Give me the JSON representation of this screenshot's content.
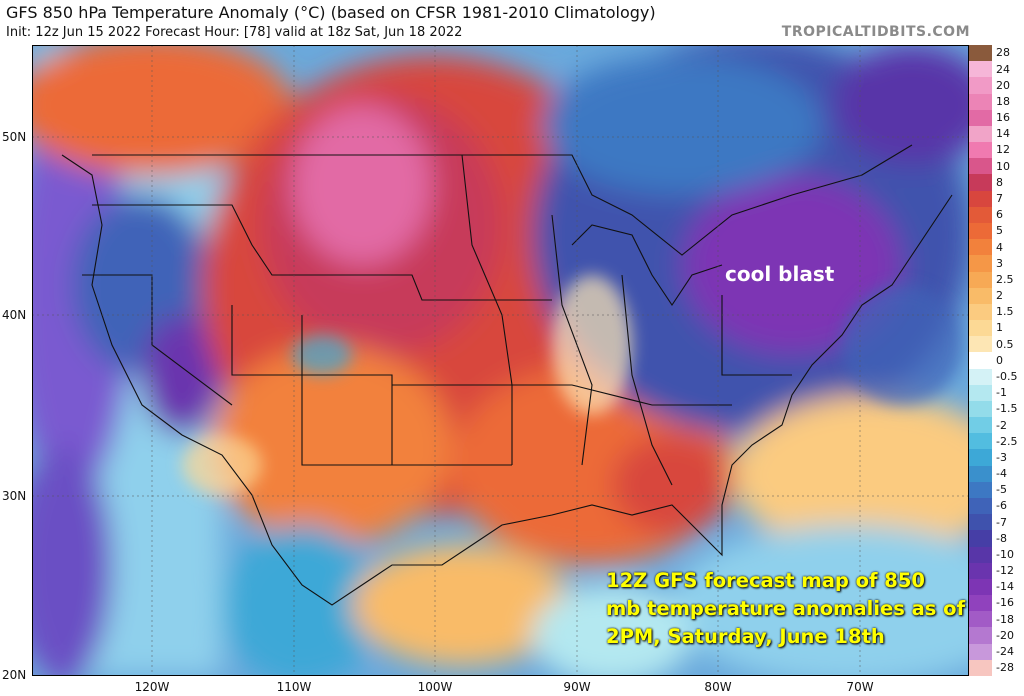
{
  "header": {
    "title": "GFS 850 hPa Temperature Anomaly (°C) (based on CFSR 1981-2010 Climatology)",
    "subtitle": "Init: 12z Jun 15 2022   Forecast Hour: [78]   valid at 18z Sat, Jun 18 2022",
    "credit": "TROPICALTIDBITS.COM"
  },
  "axes": {
    "lat_labels": [
      "50N",
      "40N",
      "30N",
      "20N"
    ],
    "lon_labels": [
      "120W",
      "110W",
      "100W",
      "90W",
      "80W",
      "70W"
    ]
  },
  "colorbar": {
    "labels": [
      "28",
      "24",
      "20",
      "18",
      "16",
      "14",
      "12",
      "10",
      "8",
      "7",
      "6",
      "5",
      "4",
      "3",
      "2.5",
      "2",
      "1.5",
      "1",
      "0.5",
      "0",
      "-0.5",
      "-1",
      "-1.5",
      "-2",
      "-2.5",
      "-3",
      "-4",
      "-5",
      "-6",
      "-7",
      "-8",
      "-10",
      "-12",
      "-14",
      "-16",
      "-18",
      "-20",
      "-24",
      "-28"
    ],
    "colors": [
      "#8a5a3c",
      "#f6b6d8",
      "#f19ac6",
      "#ec84b6",
      "#e26aa5",
      "#f1a4c8",
      "#f07ab0",
      "#d9568b",
      "#c73a5a",
      "#d8463e",
      "#e35a38",
      "#ec6a37",
      "#f2813c",
      "#f59747",
      "#f7a955",
      "#f9bb68",
      "#fbcb80",
      "#fcd995",
      "#fde6b4",
      "#ffffff",
      "#d4f2f6",
      "#b4e8f0",
      "#93dcea",
      "#71cde6",
      "#52bde0",
      "#3da8d7",
      "#3a90cc",
      "#3d78c3",
      "#3f63b8",
      "#3f52ad",
      "#463ea6",
      "#5836a8",
      "#6a34ae",
      "#7d35b4",
      "#9042bd",
      "#a25bc6",
      "#b478d0",
      "#c898db",
      "#f7c6c0"
    ]
  },
  "annotations": {
    "cool_label": "cool blast",
    "caption": "12Z GFS forecast map of 850 mb temperature anomalies as of 2PM, Saturday, June 18th"
  }
}
